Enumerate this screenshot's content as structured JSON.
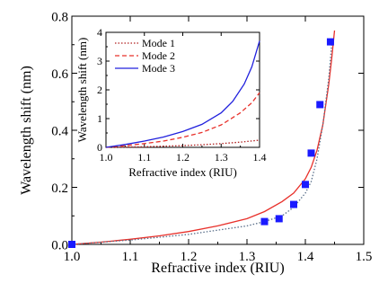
{
  "chart_data": [
    {
      "type": "line",
      "title": "",
      "xlabel": "Refractive index (RIU)",
      "ylabel": "Wavelength shift (nm)",
      "xlim": [
        1.0,
        1.5
      ],
      "ylim": [
        0,
        0.8
      ],
      "xticks": [
        "1.0",
        "1.1",
        "1.2",
        "1.3",
        "1.4",
        "1.5"
      ],
      "yticks": [
        "0.0",
        "0.2",
        "0.4",
        "0.6",
        "0.8"
      ],
      "grid": false,
      "series": [
        {
          "kind": "solid-line",
          "color": "#e8302a",
          "x": [
            1.0,
            1.05,
            1.1,
            1.15,
            1.2,
            1.25,
            1.3,
            1.33,
            1.36,
            1.38,
            1.4,
            1.41,
            1.42,
            1.43,
            1.44,
            1.445,
            1.45
          ],
          "values": [
            0.0,
            0.008,
            0.018,
            0.03,
            0.045,
            0.065,
            0.09,
            0.115,
            0.15,
            0.18,
            0.23,
            0.27,
            0.33,
            0.42,
            0.56,
            0.65,
            0.75
          ]
        },
        {
          "kind": "dotted-line",
          "color": "#5a6f8a",
          "x": [
            1.0,
            1.1,
            1.2,
            1.3,
            1.33,
            1.36,
            1.38,
            1.4,
            1.41,
            1.42,
            1.43,
            1.44,
            1.445
          ],
          "values": [
            0.0,
            0.015,
            0.035,
            0.065,
            0.08,
            0.1,
            0.13,
            0.18,
            0.22,
            0.3,
            0.42,
            0.58,
            0.7
          ]
        },
        {
          "kind": "markers",
          "marker": "square",
          "color": "#1a1aff",
          "x": [
            1.0,
            1.33,
            1.355,
            1.38,
            1.4,
            1.41,
            1.425,
            1.443
          ],
          "values": [
            0.0,
            0.08,
            0.09,
            0.14,
            0.21,
            0.32,
            0.49,
            0.71
          ]
        }
      ]
    },
    {
      "type": "line",
      "title": "",
      "xlabel": "Refractive index (RIU)",
      "ylabel": "Wavelength shift (nm)",
      "xlim": [
        1.0,
        1.4
      ],
      "ylim": [
        0,
        4
      ],
      "xticks": [
        "1.0",
        "1.1",
        "1.2",
        "1.3",
        "1.4"
      ],
      "yticks": [
        "0",
        "1",
        "2",
        "3",
        "4"
      ],
      "grid": false,
      "legend": "top-left",
      "series": [
        {
          "name": "Mode 1",
          "dash": "dotted",
          "color": "#b02020",
          "x": [
            1.0,
            1.05,
            1.1,
            1.15,
            1.2,
            1.25,
            1.3,
            1.35,
            1.4
          ],
          "values": [
            0.0,
            0.01,
            0.02,
            0.04,
            0.06,
            0.09,
            0.13,
            0.18,
            0.25
          ]
        },
        {
          "name": "Mode 2",
          "dash": "dashed",
          "color": "#e8302a",
          "x": [
            1.0,
            1.05,
            1.1,
            1.15,
            1.2,
            1.25,
            1.3,
            1.35,
            1.38,
            1.4
          ],
          "values": [
            0.0,
            0.06,
            0.13,
            0.22,
            0.35,
            0.52,
            0.78,
            1.2,
            1.55,
            1.9
          ]
        },
        {
          "name": "Mode 3",
          "dash": "solid",
          "color": "#2020dd",
          "x": [
            1.0,
            1.05,
            1.1,
            1.15,
            1.2,
            1.25,
            1.3,
            1.33,
            1.36,
            1.38,
            1.4
          ],
          "values": [
            0.0,
            0.1,
            0.22,
            0.36,
            0.55,
            0.8,
            1.2,
            1.6,
            2.2,
            2.8,
            3.7
          ]
        }
      ]
    }
  ]
}
